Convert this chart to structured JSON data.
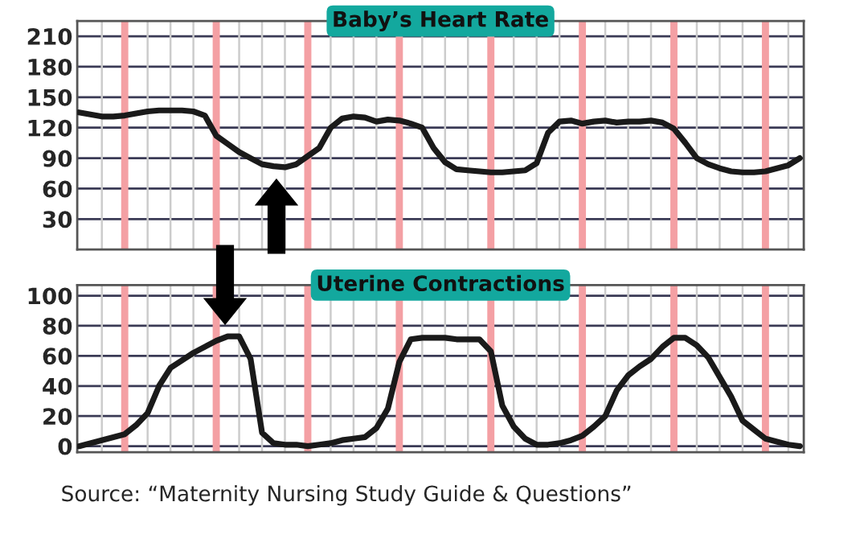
{
  "chart_data": [
    {
      "type": "line",
      "title": "Baby’s Heart Rate",
      "tick_labels": "y",
      "grid": true,
      "ylim": [
        0,
        225
      ],
      "yticks": [
        30,
        60,
        90,
        120,
        150,
        180,
        210
      ],
      "categories": [
        null,
        null,
        null,
        null,
        null,
        null,
        null,
        null,
        null,
        null,
        null,
        null,
        null,
        null,
        null,
        null,
        null,
        null,
        null,
        null,
        null,
        null,
        null,
        null,
        null,
        null,
        null,
        null,
        null,
        null,
        null,
        null,
        null,
        null,
        null,
        null,
        null,
        null,
        null,
        null,
        null,
        null,
        null,
        null,
        null,
        null,
        null,
        null,
        null,
        null,
        null,
        null,
        null,
        null,
        null,
        null,
        null,
        null,
        null,
        null,
        null,
        null,
        null,
        null
      ],
      "series": [
        {
          "color": "#1a1a1a",
          "values": [
            135,
            133,
            131,
            131,
            132,
            134,
            136,
            137,
            137,
            137,
            136,
            132,
            112,
            104,
            96,
            90,
            84,
            82,
            81,
            84,
            92,
            100,
            120,
            129,
            131,
            130,
            126,
            128,
            127,
            124,
            120,
            100,
            86,
            79,
            78,
            77,
            76,
            76,
            77,
            78,
            85,
            115,
            126,
            127,
            124,
            126,
            127,
            125,
            126,
            126,
            127,
            125,
            119,
            105,
            90,
            84,
            80,
            77,
            76,
            76,
            77,
            80,
            83,
            90
          ]
        }
      ]
    },
    {
      "type": "line",
      "title": "Uterine Contractions",
      "tick_labels": "y",
      "grid": true,
      "ylim": [
        -4,
        107
      ],
      "yticks": [
        0,
        20,
        40,
        60,
        80,
        100
      ],
      "categories": [
        null,
        null,
        null,
        null,
        null,
        null,
        null,
        null,
        null,
        null,
        null,
        null,
        null,
        null,
        null,
        null,
        null,
        null,
        null,
        null,
        null,
        null,
        null,
        null,
        null,
        null,
        null,
        null,
        null,
        null,
        null,
        null,
        null,
        null,
        null,
        null,
        null,
        null,
        null,
        null,
        null,
        null,
        null,
        null,
        null,
        null,
        null,
        null,
        null,
        null,
        null,
        null,
        null,
        null,
        null,
        null,
        null,
        null,
        null,
        null,
        null,
        null,
        null,
        null
      ],
      "annotations": [
        "Source: “Maternity Nursing Study Guide & Questions”"
      ],
      "series": [
        {
          "color": "#1a1a1a",
          "values": [
            0,
            2,
            4,
            6,
            8,
            14,
            22,
            40,
            52,
            57,
            62,
            66,
            70,
            73,
            73,
            58,
            9,
            2,
            1,
            1,
            0,
            1,
            2,
            4,
            5,
            6,
            12,
            25,
            56,
            71,
            72,
            72,
            72,
            71,
            71,
            71,
            63,
            27,
            13,
            5,
            1,
            1,
            2,
            4,
            7,
            13,
            20,
            37,
            47,
            53,
            58,
            66,
            72,
            72,
            67,
            59,
            46,
            33,
            17,
            11,
            5,
            3,
            1,
            0
          ]
        }
      ]
    }
  ]
}
